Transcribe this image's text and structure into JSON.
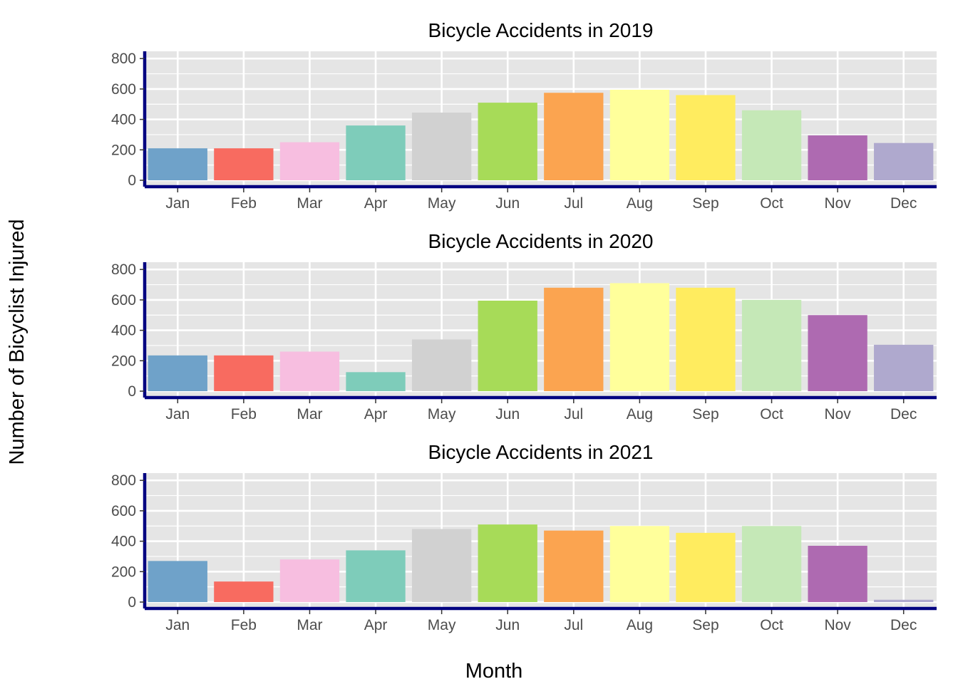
{
  "chart_data": {
    "type": "bar",
    "xlabel": "Month",
    "ylabel": "Number of Bicyclist Injured",
    "categories": [
      "Jan",
      "Feb",
      "Mar",
      "Apr",
      "May",
      "Jun",
      "Jul",
      "Aug",
      "Sep",
      "Oct",
      "Nov",
      "Dec"
    ],
    "ylim": [
      0,
      800
    ],
    "yticks": [
      0,
      200,
      400,
      600,
      800
    ],
    "colors": [
      "#6FA2C9",
      "#F86B60",
      "#F7BEE0",
      "#7ECCBA",
      "#D1D1D1",
      "#A7DB58",
      "#FBA450",
      "#FFFF9B",
      "#FFEC5F",
      "#C5E8B7",
      "#AE6AB1",
      "#AFA9CE"
    ],
    "axis_line_color": "#000080",
    "panel_background": "#E5E5E5",
    "panels": [
      {
        "title": "Bicycle Accidents in 2019",
        "values": [
          210,
          210,
          250,
          360,
          445,
          510,
          575,
          595,
          560,
          460,
          295,
          245
        ]
      },
      {
        "title": "Bicycle Accidents in 2020",
        "values": [
          235,
          235,
          260,
          125,
          340,
          595,
          680,
          710,
          680,
          600,
          500,
          305
        ]
      },
      {
        "title": "Bicycle Accidents in 2021",
        "values": [
          270,
          135,
          280,
          340,
          480,
          510,
          470,
          500,
          455,
          500,
          370,
          15
        ]
      }
    ]
  }
}
